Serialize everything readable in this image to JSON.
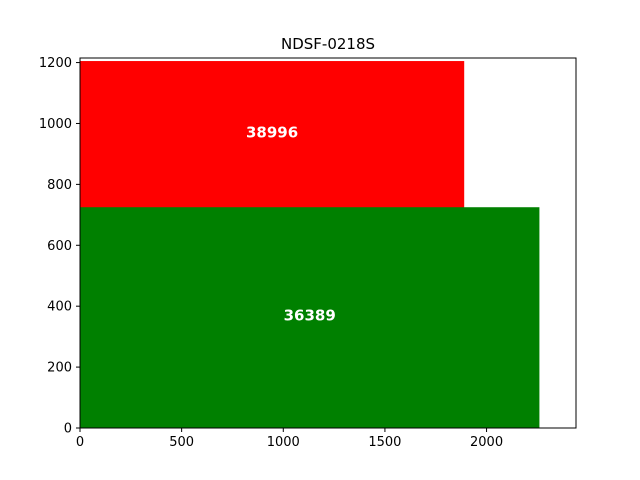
{
  "chart_data": {
    "type": "bar",
    "title": "NDSF-0218S",
    "xlabel": "",
    "ylabel": "",
    "xlim": [
      0,
      2440
    ],
    "ylim": [
      0,
      1215
    ],
    "x_ticks": [
      0,
      500,
      1000,
      1500,
      2000
    ],
    "y_ticks": [
      0,
      200,
      400,
      600,
      800,
      1000,
      1200
    ],
    "grid": false,
    "legend": "none",
    "rects": [
      {
        "label": "38996",
        "color": "#ff0000",
        "x0": 0,
        "x1": 1890,
        "y0": 720,
        "y1": 1205,
        "label_x": 945,
        "label_y": 970
      },
      {
        "label": "36389",
        "color": "#008000",
        "x0": 0,
        "x1": 2260,
        "y0": 0,
        "y1": 725,
        "label_x": 1130,
        "label_y": 370
      }
    ]
  }
}
